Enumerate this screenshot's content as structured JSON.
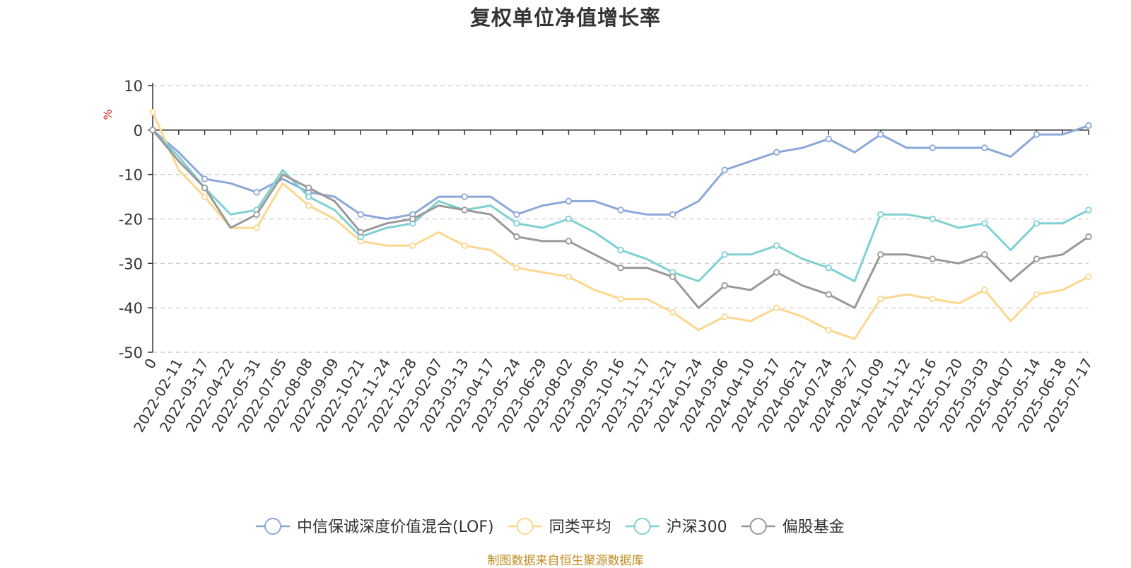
{
  "title": "复权单位净值增长率",
  "source_note": "制图数据来自恒生聚源数据库",
  "chart_data": {
    "type": "line",
    "title": "复权单位净值增长率",
    "ylabel": "%",
    "ylim": [
      -50,
      10
    ],
    "yticks": [
      10,
      0,
      -10,
      -20,
      -30,
      -40,
      -50
    ],
    "grid": "horizontal dashed",
    "legend_position": "bottom",
    "categories": [
      "0",
      "2022-02-11",
      "2022-03-17",
      "2022-04-22",
      "2022-05-31",
      "2022-07-05",
      "2022-08-08",
      "2022-09-09",
      "2022-10-21",
      "2022-11-24",
      "2022-12-28",
      "2023-02-07",
      "2023-03-13",
      "2023-04-17",
      "2023-05-24",
      "2023-06-29",
      "2023-08-02",
      "2023-09-05",
      "2023-10-16",
      "2023-11-17",
      "2023-12-21",
      "2024-01-24",
      "2024-03-06",
      "2024-04-10",
      "2024-05-17",
      "2024-06-21",
      "2024-07-24",
      "2024-08-27",
      "2024-10-09",
      "2024-11-12",
      "2024-12-16",
      "2025-01-20",
      "2025-03-03",
      "2025-04-07",
      "2025-05-14",
      "2025-06-18",
      "2025-07-17"
    ],
    "series": [
      {
        "name": "中信保诚深度价值混合(LOF)",
        "color": "#8ca8d8",
        "values": [
          0,
          -5,
          -11,
          -12,
          -14,
          -11,
          -14,
          -15,
          -19,
          -20,
          -19,
          -15,
          -15,
          -15,
          -19,
          -17,
          -16,
          -16,
          -18,
          -19,
          -19,
          -16,
          -9,
          -7,
          -5,
          -4,
          -2,
          -5,
          -1,
          -4,
          -4,
          -4,
          -4,
          -6,
          -1,
          -1,
          1
        ]
      },
      {
        "name": "同类平均",
        "color": "#fcd78e",
        "values": [
          4,
          -9,
          -15,
          -22,
          -22,
          -12,
          -17,
          -20,
          -25,
          -26,
          -26,
          -23,
          -26,
          -27,
          -31,
          -32,
          -33,
          -36,
          -38,
          -38,
          -41,
          -45,
          -42,
          -43,
          -40,
          -42,
          -45,
          -47,
          -38,
          -37,
          -38,
          -39,
          -36,
          -43,
          -37,
          -36,
          -33
        ]
      },
      {
        "name": "沪深300",
        "color": "#7fd1d1",
        "values": [
          0,
          -6,
          -13,
          -19,
          -18,
          -9,
          -15,
          -18,
          -24,
          -22,
          -21,
          -16,
          -18,
          -17,
          -21,
          -22,
          -20,
          -23,
          -27,
          -29,
          -32,
          -34,
          -28,
          -28,
          -26,
          -29,
          -31,
          -34,
          -19,
          -19,
          -20,
          -22,
          -21,
          -27,
          -21,
          -21,
          -18
        ]
      },
      {
        "name": "偏股基金",
        "color": "#999999",
        "values": [
          0,
          -7,
          -13,
          -22,
          -19,
          -10,
          -13,
          -16,
          -23,
          -21,
          -20,
          -17,
          -18,
          -19,
          -24,
          -25,
          -25,
          -28,
          -31,
          -31,
          -33,
          -40,
          -35,
          -36,
          -32,
          -35,
          -37,
          -40,
          -28,
          -28,
          -29,
          -30,
          -28,
          -34,
          -29,
          -28,
          -24
        ]
      }
    ]
  }
}
